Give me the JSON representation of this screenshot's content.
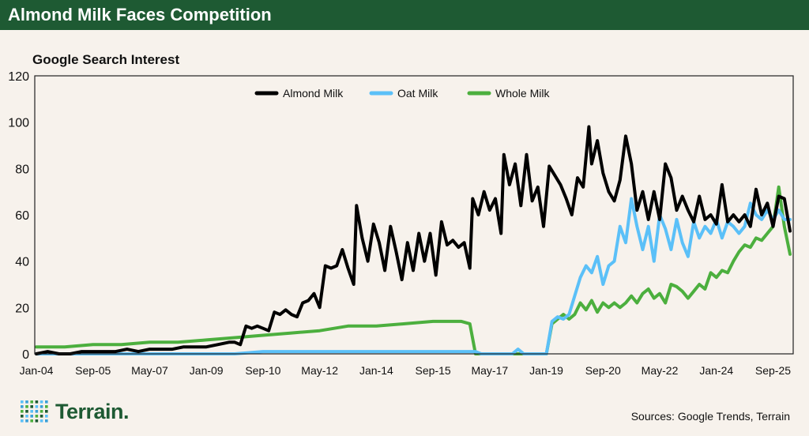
{
  "header": {
    "title": "Almond Milk Faces Competition",
    "background": "#1e5a33"
  },
  "footer": {
    "brand": "Terrain",
    "brand_mark": "Terrain.",
    "sources": "Sources: Google Trends, Terrain"
  },
  "chart_data": {
    "type": "line",
    "title": "",
    "subtitle": "Google Search Interest",
    "xlabel": "",
    "ylabel": "",
    "ylim": [
      0,
      120
    ],
    "yticks": [
      0,
      20,
      40,
      60,
      80,
      100,
      120
    ],
    "xticks": [
      "Jan-04",
      "Sep-05",
      "May-07",
      "Jan-09",
      "Sep-10",
      "May-12",
      "Jan-14",
      "Sep-15",
      "May-17",
      "Jan-19",
      "Sep-20",
      "May-22",
      "Jan-24",
      "Sep-25"
    ],
    "xtick_months": [
      0,
      20,
      40,
      60,
      80,
      100,
      120,
      140,
      160,
      180,
      200,
      220,
      240,
      260
    ],
    "x_range_months": [
      0,
      266
    ],
    "grid": false,
    "legend": "top-center",
    "series": [
      {
        "name": "Almond Milk",
        "color": "#000000",
        "points": [
          [
            0,
            0
          ],
          [
            4,
            1
          ],
          [
            8,
            0
          ],
          [
            12,
            0
          ],
          [
            16,
            1
          ],
          [
            20,
            1
          ],
          [
            24,
            1
          ],
          [
            28,
            1
          ],
          [
            32,
            2
          ],
          [
            36,
            1
          ],
          [
            40,
            2
          ],
          [
            44,
            2
          ],
          [
            48,
            2
          ],
          [
            52,
            3
          ],
          [
            56,
            3
          ],
          [
            60,
            3
          ],
          [
            64,
            4
          ],
          [
            68,
            5
          ],
          [
            70,
            5
          ],
          [
            72,
            4
          ],
          [
            74,
            12
          ],
          [
            76,
            11
          ],
          [
            78,
            12
          ],
          [
            80,
            11
          ],
          [
            82,
            10
          ],
          [
            84,
            18
          ],
          [
            86,
            17
          ],
          [
            88,
            19
          ],
          [
            90,
            17
          ],
          [
            92,
            16
          ],
          [
            94,
            22
          ],
          [
            96,
            23
          ],
          [
            98,
            26
          ],
          [
            100,
            20
          ],
          [
            102,
            38
          ],
          [
            104,
            37
          ],
          [
            106,
            38
          ],
          [
            108,
            45
          ],
          [
            110,
            37
          ],
          [
            112,
            30
          ],
          [
            113,
            64
          ],
          [
            115,
            50
          ],
          [
            117,
            40
          ],
          [
            119,
            56
          ],
          [
            121,
            48
          ],
          [
            123,
            36
          ],
          [
            125,
            55
          ],
          [
            127,
            44
          ],
          [
            129,
            32
          ],
          [
            131,
            48
          ],
          [
            133,
            36
          ],
          [
            135,
            52
          ],
          [
            137,
            40
          ],
          [
            139,
            52
          ],
          [
            141,
            34
          ],
          [
            143,
            57
          ],
          [
            145,
            47
          ],
          [
            147,
            49
          ],
          [
            149,
            46
          ],
          [
            151,
            48
          ],
          [
            153,
            37
          ],
          [
            154,
            67
          ],
          [
            156,
            60
          ],
          [
            158,
            70
          ],
          [
            160,
            62
          ],
          [
            162,
            67
          ],
          [
            164,
            52
          ],
          [
            165,
            86
          ],
          [
            167,
            73
          ],
          [
            169,
            82
          ],
          [
            171,
            64
          ],
          [
            173,
            86
          ],
          [
            175,
            66
          ],
          [
            177,
            72
          ],
          [
            179,
            55
          ],
          [
            181,
            81
          ],
          [
            183,
            77
          ],
          [
            185,
            73
          ],
          [
            187,
            67
          ],
          [
            189,
            60
          ],
          [
            191,
            76
          ],
          [
            193,
            72
          ],
          [
            195,
            98
          ],
          [
            196,
            82
          ],
          [
            198,
            92
          ],
          [
            200,
            78
          ],
          [
            202,
            70
          ],
          [
            204,
            66
          ],
          [
            206,
            75
          ],
          [
            208,
            94
          ],
          [
            210,
            82
          ],
          [
            212,
            62
          ],
          [
            214,
            70
          ],
          [
            216,
            58
          ],
          [
            218,
            70
          ],
          [
            220,
            58
          ],
          [
            222,
            82
          ],
          [
            224,
            76
          ],
          [
            226,
            62
          ],
          [
            228,
            68
          ],
          [
            230,
            62
          ],
          [
            232,
            57
          ],
          [
            234,
            68
          ],
          [
            236,
            58
          ],
          [
            238,
            60
          ],
          [
            240,
            56
          ],
          [
            242,
            73
          ],
          [
            244,
            57
          ],
          [
            246,
            60
          ],
          [
            248,
            57
          ],
          [
            250,
            60
          ],
          [
            252,
            55
          ],
          [
            254,
            71
          ],
          [
            256,
            60
          ],
          [
            258,
            65
          ],
          [
            260,
            55
          ],
          [
            262,
            68
          ],
          [
            264,
            67
          ],
          [
            266,
            53
          ]
        ]
      },
      {
        "name": "Oat Milk",
        "color": "#5bc0f8",
        "points": [
          [
            0,
            0
          ],
          [
            10,
            0
          ],
          [
            20,
            0
          ],
          [
            30,
            0
          ],
          [
            40,
            0
          ],
          [
            50,
            0
          ],
          [
            60,
            0
          ],
          [
            70,
            0
          ],
          [
            80,
            1
          ],
          [
            90,
            1
          ],
          [
            100,
            1
          ],
          [
            110,
            1
          ],
          [
            120,
            1
          ],
          [
            130,
            1
          ],
          [
            140,
            1
          ],
          [
            150,
            1
          ],
          [
            155,
            1
          ],
          [
            157,
            0
          ],
          [
            160,
            0
          ],
          [
            168,
            0
          ],
          [
            170,
            2
          ],
          [
            172,
            0
          ],
          [
            180,
            0
          ],
          [
            182,
            14
          ],
          [
            184,
            16
          ],
          [
            186,
            15
          ],
          [
            188,
            17
          ],
          [
            190,
            25
          ],
          [
            192,
            33
          ],
          [
            194,
            38
          ],
          [
            196,
            35
          ],
          [
            198,
            42
          ],
          [
            200,
            30
          ],
          [
            202,
            38
          ],
          [
            204,
            40
          ],
          [
            206,
            55
          ],
          [
            208,
            48
          ],
          [
            210,
            67
          ],
          [
            212,
            55
          ],
          [
            214,
            45
          ],
          [
            216,
            55
          ],
          [
            218,
            40
          ],
          [
            220,
            60
          ],
          [
            222,
            54
          ],
          [
            224,
            45
          ],
          [
            226,
            58
          ],
          [
            228,
            48
          ],
          [
            230,
            42
          ],
          [
            232,
            57
          ],
          [
            234,
            50
          ],
          [
            236,
            55
          ],
          [
            238,
            52
          ],
          [
            240,
            58
          ],
          [
            242,
            50
          ],
          [
            244,
            57
          ],
          [
            246,
            55
          ],
          [
            248,
            52
          ],
          [
            250,
            55
          ],
          [
            252,
            65
          ],
          [
            254,
            60
          ],
          [
            256,
            58
          ],
          [
            258,
            62
          ],
          [
            260,
            58
          ],
          [
            262,
            62
          ],
          [
            264,
            58
          ],
          [
            266,
            58
          ]
        ]
      },
      {
        "name": "Whole Milk",
        "color": "#4caf3e",
        "points": [
          [
            0,
            3
          ],
          [
            10,
            3
          ],
          [
            20,
            4
          ],
          [
            30,
            4
          ],
          [
            40,
            5
          ],
          [
            50,
            5
          ],
          [
            60,
            6
          ],
          [
            70,
            7
          ],
          [
            80,
            8
          ],
          [
            90,
            9
          ],
          [
            100,
            10
          ],
          [
            110,
            12
          ],
          [
            120,
            12
          ],
          [
            130,
            13
          ],
          [
            140,
            14
          ],
          [
            150,
            14
          ],
          [
            153,
            13
          ],
          [
            155,
            0
          ],
          [
            160,
            0
          ],
          [
            170,
            0
          ],
          [
            180,
            0
          ],
          [
            182,
            13
          ],
          [
            184,
            15
          ],
          [
            186,
            17
          ],
          [
            188,
            15
          ],
          [
            190,
            17
          ],
          [
            192,
            22
          ],
          [
            194,
            19
          ],
          [
            196,
            23
          ],
          [
            198,
            18
          ],
          [
            200,
            22
          ],
          [
            202,
            20
          ],
          [
            204,
            22
          ],
          [
            206,
            20
          ],
          [
            208,
            22
          ],
          [
            210,
            25
          ],
          [
            212,
            22
          ],
          [
            214,
            26
          ],
          [
            216,
            28
          ],
          [
            218,
            24
          ],
          [
            220,
            26
          ],
          [
            222,
            22
          ],
          [
            224,
            30
          ],
          [
            226,
            29
          ],
          [
            228,
            27
          ],
          [
            230,
            24
          ],
          [
            232,
            27
          ],
          [
            234,
            30
          ],
          [
            236,
            28
          ],
          [
            238,
            35
          ],
          [
            240,
            33
          ],
          [
            242,
            36
          ],
          [
            244,
            35
          ],
          [
            246,
            40
          ],
          [
            248,
            44
          ],
          [
            250,
            47
          ],
          [
            252,
            46
          ],
          [
            254,
            50
          ],
          [
            256,
            49
          ],
          [
            258,
            52
          ],
          [
            260,
            55
          ],
          [
            262,
            72
          ],
          [
            264,
            55
          ],
          [
            266,
            43
          ]
        ]
      }
    ]
  }
}
